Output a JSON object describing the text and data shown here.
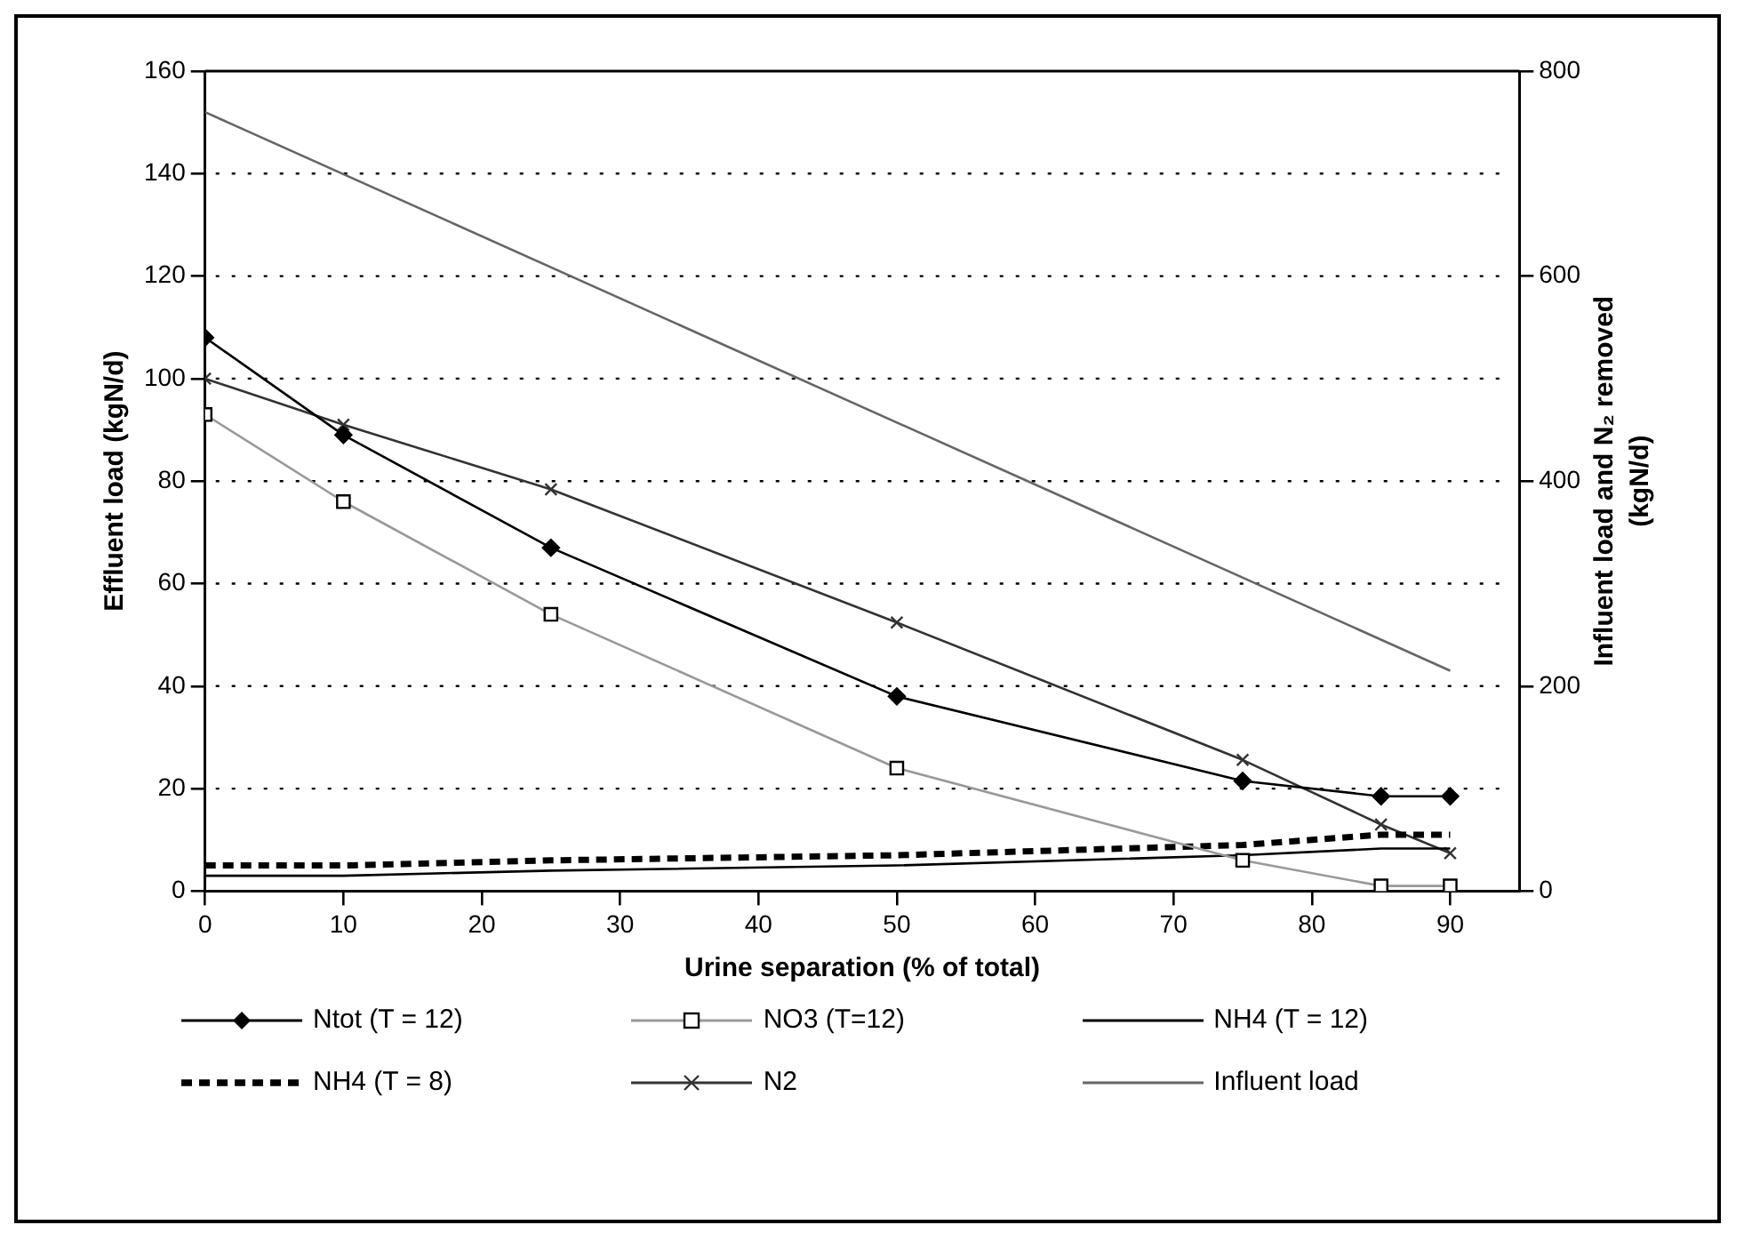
{
  "chart_data": {
    "type": "line",
    "xlabel": "Urine separation (% of total)",
    "ylabel": "Effluent load (kgN/d)",
    "y2label": "Influent load and N₂ removed (kgN/d)",
    "xlim": [
      0,
      95
    ],
    "xticks": [
      0,
      10,
      20,
      30,
      40,
      50,
      60,
      70,
      80,
      90
    ],
    "ylim": [
      0,
      160
    ],
    "yticks": [
      0,
      20,
      40,
      60,
      80,
      100,
      120,
      140,
      160
    ],
    "y2lim": [
      0,
      800
    ],
    "y2ticks": [
      0,
      200,
      400,
      600,
      800
    ],
    "grid": "y",
    "legend": "bottom",
    "series": [
      {
        "name": "Ntot (T = 12)",
        "color": "#000000",
        "marker": "diamond",
        "line_style": "solid",
        "x": [
          0,
          10,
          25,
          50,
          75,
          85,
          90
        ],
        "values": [
          108,
          89,
          67,
          38,
          21.5,
          18.5,
          18.5
        ]
      },
      {
        "name": "NO3 (T=12)",
        "color": "#999999",
        "marker": "square",
        "line_style": "solid",
        "x": [
          0,
          10,
          25,
          50,
          75,
          85,
          90
        ],
        "values": [
          93,
          76,
          54,
          24,
          6,
          1,
          1
        ]
      },
      {
        "name": "NH4 (T = 12)",
        "color": "#000000",
        "marker": "none",
        "line_style": "solid",
        "x": [
          0,
          10,
          25,
          50,
          75,
          85,
          90
        ],
        "values": [
          3,
          3,
          4,
          5,
          7,
          8.3,
          8.3
        ]
      },
      {
        "name": "NH4 (T = 8)",
        "color": "#000000",
        "marker": "none",
        "line_style": "dashed",
        "x": [
          0,
          10,
          25,
          50,
          75,
          85,
          90
        ],
        "values": [
          5,
          5,
          6,
          7,
          9,
          11,
          11
        ]
      },
      {
        "name": "N2",
        "color": "#333333",
        "marker": "cross",
        "line_style": "solid",
        "axis": "y2",
        "x": [
          0,
          10,
          25,
          50,
          75,
          85,
          90
        ],
        "values": [
          500,
          455,
          392,
          262,
          128,
          65,
          37
        ]
      },
      {
        "name": "Influent load",
        "color": "#666666",
        "marker": "none",
        "line_style": "solid",
        "axis": "y2",
        "x": [
          0,
          90
        ],
        "values": [
          760,
          215
        ]
      }
    ]
  }
}
